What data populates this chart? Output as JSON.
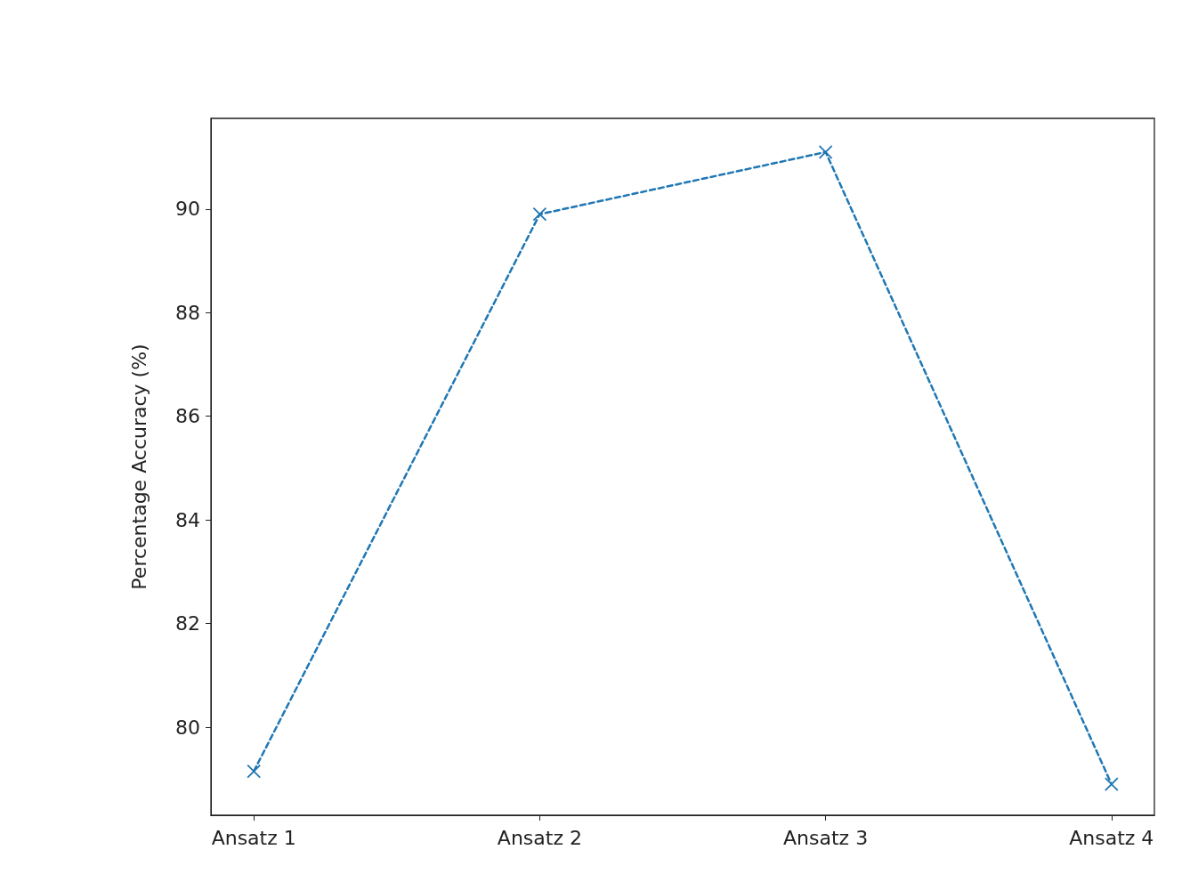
{
  "chart_data": {
    "type": "line",
    "ylabel": "Percentage Accuracy (%)",
    "categories": [
      "Ansatz 1",
      "Ansatz 2",
      "Ansatz 3",
      "Ansatz 4"
    ],
    "series": [
      {
        "color": "#1f77b4",
        "values": [
          79.15,
          89.9,
          91.1,
          78.9
        ]
      }
    ],
    "ylim": [
      78.3,
      91.75
    ],
    "yticks": [
      80,
      82,
      84,
      86,
      88,
      90
    ],
    "marker": "cross",
    "line_style": "dashed"
  }
}
